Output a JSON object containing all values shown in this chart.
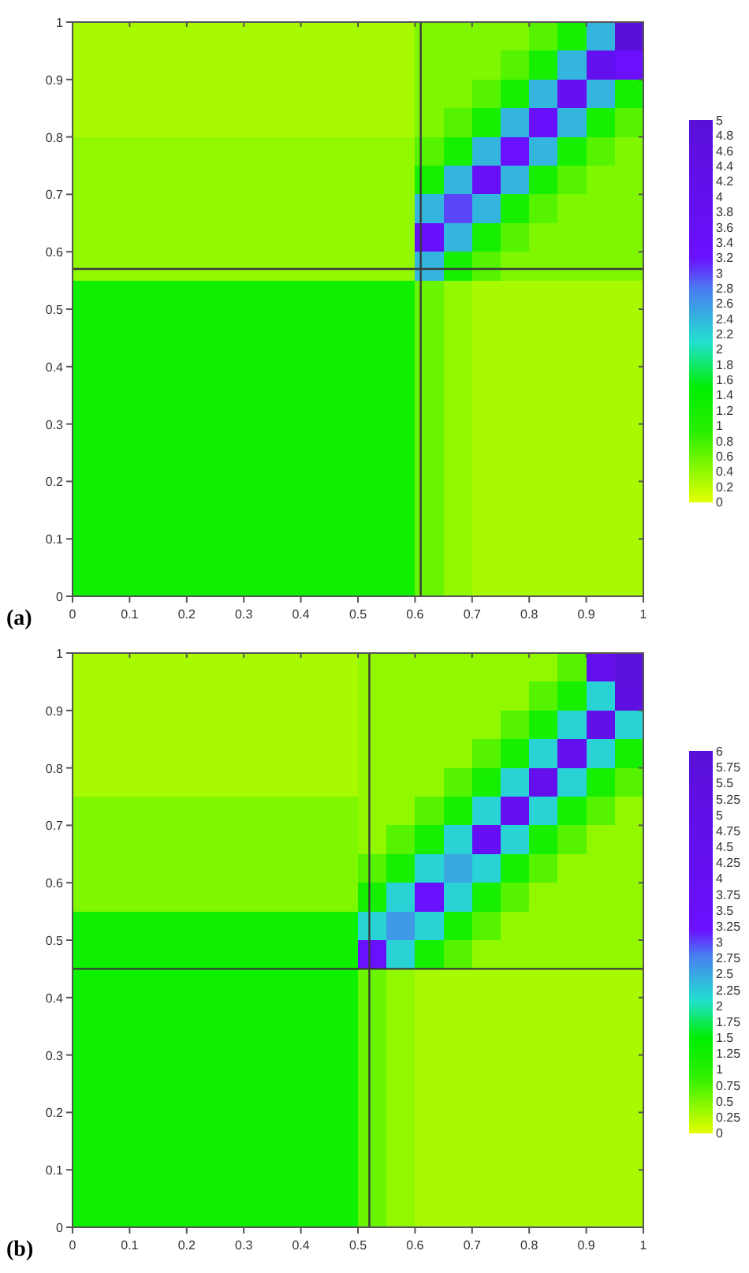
{
  "chart_data": [
    {
      "type": "heatmap",
      "x": [
        0.025,
        0.075,
        0.125,
        0.175,
        0.225,
        0.275,
        0.325,
        0.375,
        0.425,
        0.475,
        0.525,
        0.575,
        0.625,
        0.675,
        0.725,
        0.775,
        0.825,
        0.875,
        0.925,
        0.975
      ],
      "y": [
        0.975,
        0.925,
        0.875,
        0.825,
        0.775,
        0.725,
        0.675,
        0.625,
        0.575,
        0.525,
        0.475,
        0.425,
        0.375,
        0.325,
        0.275,
        0.225,
        0.175,
        0.125,
        0.075,
        0.025
      ],
      "xlim": [
        0,
        1
      ],
      "ylim": [
        0,
        1
      ],
      "xticks": [
        0,
        0.1,
        0.2,
        0.3,
        0.4,
        0.5,
        0.6,
        0.7,
        0.8,
        0.9,
        1
      ],
      "yticks": [
        0,
        0.1,
        0.2,
        0.3,
        0.4,
        0.5,
        0.6,
        0.7,
        0.8,
        0.9,
        1
      ],
      "clim": [
        0,
        5
      ],
      "cticks": [
        0,
        0.2,
        0.4,
        0.6,
        0.8,
        1,
        1.2,
        1.4,
        1.6,
        1.8,
        2,
        2.2,
        2.4,
        2.6,
        2.8,
        3,
        3.2,
        3.4,
        3.6,
        3.8,
        4,
        4.2,
        4.4,
        4.6,
        4.8,
        5
      ],
      "ref_lines": [
        {
          "axis": "x",
          "value": 0.61
        },
        {
          "axis": "y",
          "value": 0.57
        }
      ],
      "annotations": [
        "(a)"
      ],
      "cells": [
        [
          0.3,
          0.3,
          0.3,
          0.3,
          0.3,
          0.3,
          0.3,
          0.3,
          0.3,
          0.3,
          0.3,
          0.3,
          0.5,
          0.5,
          0.5,
          0.5,
          0.7,
          1.2,
          2.4,
          5
        ],
        [
          0.3,
          0.3,
          0.3,
          0.3,
          0.3,
          0.3,
          0.3,
          0.3,
          0.3,
          0.3,
          0.3,
          0.3,
          0.5,
          0.5,
          0.5,
          0.7,
          1.2,
          2.4,
          4,
          3.2
        ],
        [
          0.3,
          0.3,
          0.3,
          0.3,
          0.3,
          0.3,
          0.3,
          0.3,
          0.3,
          0.3,
          0.3,
          0.3,
          0.5,
          0.5,
          0.7,
          1.2,
          2.4,
          3.8,
          2.4,
          1.2
        ],
        [
          0.3,
          0.3,
          0.3,
          0.3,
          0.3,
          0.3,
          0.3,
          0.3,
          0.3,
          0.3,
          0.3,
          0.3,
          0.5,
          0.7,
          1.2,
          2.4,
          3.4,
          2.4,
          1.2,
          0.7
        ],
        [
          0.4,
          0.4,
          0.4,
          0.4,
          0.4,
          0.4,
          0.4,
          0.4,
          0.4,
          0.4,
          0.4,
          0.4,
          0.7,
          1.2,
          2.4,
          3.2,
          2.4,
          1.2,
          0.7,
          0.5
        ],
        [
          0.4,
          0.4,
          0.4,
          0.4,
          0.4,
          0.4,
          0.4,
          0.4,
          0.4,
          0.4,
          0.4,
          0.4,
          1.2,
          2.4,
          3.6,
          2.4,
          1.2,
          0.7,
          0.5,
          0.5
        ],
        [
          0.4,
          0.4,
          0.4,
          0.4,
          0.4,
          0.4,
          0.4,
          0.4,
          0.4,
          0.4,
          0.4,
          0.4,
          2.4,
          3,
          2.4,
          1.2,
          0.7,
          0.5,
          0.5,
          0.5
        ],
        [
          0.4,
          0.4,
          0.4,
          0.4,
          0.4,
          0.4,
          0.4,
          0.4,
          0.4,
          0.4,
          0.4,
          0.4,
          3.4,
          2.4,
          1.2,
          0.7,
          0.5,
          0.5,
          0.5,
          0.5
        ],
        [
          0.4,
          0.4,
          0.4,
          0.4,
          0.4,
          0.4,
          0.4,
          0.4,
          0.4,
          0.4,
          0.4,
          0.4,
          2.4,
          1.2,
          0.7,
          0.5,
          0.5,
          0.5,
          0.5,
          0.5
        ],
        [
          1.3,
          1.3,
          1.3,
          1.3,
          1.3,
          1.3,
          1.3,
          1.3,
          1.3,
          1.3,
          1.3,
          1.3,
          0.6,
          0.4,
          0.3,
          0.3,
          0.3,
          0.3,
          0.3,
          0.3
        ],
        [
          1.3,
          1.3,
          1.3,
          1.3,
          1.3,
          1.3,
          1.3,
          1.3,
          1.3,
          1.3,
          1.3,
          1.3,
          0.6,
          0.4,
          0.3,
          0.3,
          0.3,
          0.3,
          0.3,
          0.3
        ],
        [
          1.3,
          1.3,
          1.3,
          1.3,
          1.3,
          1.3,
          1.3,
          1.3,
          1.3,
          1.3,
          1.3,
          1.3,
          0.6,
          0.4,
          0.3,
          0.3,
          0.3,
          0.3,
          0.3,
          0.3
        ],
        [
          1.3,
          1.3,
          1.3,
          1.3,
          1.3,
          1.3,
          1.3,
          1.3,
          1.3,
          1.3,
          1.3,
          1.3,
          0.6,
          0.4,
          0.3,
          0.3,
          0.3,
          0.3,
          0.3,
          0.3
        ],
        [
          1.3,
          1.3,
          1.3,
          1.3,
          1.3,
          1.3,
          1.3,
          1.3,
          1.3,
          1.3,
          1.3,
          1.3,
          0.6,
          0.4,
          0.3,
          0.3,
          0.3,
          0.3,
          0.3,
          0.3
        ],
        [
          1.3,
          1.3,
          1.3,
          1.3,
          1.3,
          1.3,
          1.3,
          1.3,
          1.3,
          1.3,
          1.3,
          1.3,
          0.6,
          0.4,
          0.3,
          0.3,
          0.3,
          0.3,
          0.3,
          0.3
        ],
        [
          1.3,
          1.3,
          1.3,
          1.3,
          1.3,
          1.3,
          1.3,
          1.3,
          1.3,
          1.3,
          1.3,
          1.3,
          0.6,
          0.4,
          0.3,
          0.3,
          0.3,
          0.3,
          0.3,
          0.3
        ],
        [
          1.3,
          1.3,
          1.3,
          1.3,
          1.3,
          1.3,
          1.3,
          1.3,
          1.3,
          1.3,
          1.3,
          1.3,
          0.6,
          0.4,
          0.3,
          0.3,
          0.3,
          0.3,
          0.3,
          0.3
        ],
        [
          1.3,
          1.3,
          1.3,
          1.3,
          1.3,
          1.3,
          1.3,
          1.3,
          1.3,
          1.3,
          1.3,
          1.3,
          0.6,
          0.4,
          0.3,
          0.3,
          0.3,
          0.3,
          0.3,
          0.3
        ],
        [
          1.3,
          1.3,
          1.3,
          1.3,
          1.3,
          1.3,
          1.3,
          1.3,
          1.3,
          1.3,
          1.3,
          1.3,
          0.6,
          0.4,
          0.3,
          0.3,
          0.3,
          0.3,
          0.3,
          0.3
        ],
        [
          1.3,
          1.3,
          1.3,
          1.3,
          1.3,
          1.3,
          1.3,
          1.3,
          1.3,
          1.3,
          1.3,
          1.3,
          0.6,
          0.4,
          0.3,
          0.3,
          0.3,
          0.3,
          0.3,
          0.3
        ]
      ]
    },
    {
      "type": "heatmap",
      "x": [
        0.025,
        0.075,
        0.125,
        0.175,
        0.225,
        0.275,
        0.325,
        0.375,
        0.425,
        0.475,
        0.525,
        0.575,
        0.625,
        0.675,
        0.725,
        0.775,
        0.825,
        0.875,
        0.925,
        0.975
      ],
      "y": [
        0.975,
        0.925,
        0.875,
        0.825,
        0.775,
        0.725,
        0.675,
        0.625,
        0.575,
        0.525,
        0.475,
        0.425,
        0.375,
        0.325,
        0.275,
        0.225,
        0.175,
        0.125,
        0.075,
        0.025
      ],
      "xlim": [
        0,
        1
      ],
      "ylim": [
        0,
        1
      ],
      "xticks": [
        0,
        0.1,
        0.2,
        0.3,
        0.4,
        0.5,
        0.6,
        0.7,
        0.8,
        0.9,
        1
      ],
      "yticks": [
        0,
        0.1,
        0.2,
        0.3,
        0.4,
        0.5,
        0.6,
        0.7,
        0.8,
        0.9,
        1
      ],
      "clim": [
        0,
        6
      ],
      "cticks": [
        0,
        0.25,
        0.5,
        0.75,
        1,
        1.25,
        1.5,
        1.75,
        2,
        2.25,
        2.5,
        2.75,
        3,
        3.25,
        3.5,
        3.75,
        4,
        4.25,
        4.5,
        4.75,
        5,
        5.25,
        5.5,
        5.75,
        6
      ],
      "ref_lines": [
        {
          "axis": "x",
          "value": 0.52
        },
        {
          "axis": "y",
          "value": 0.45
        }
      ],
      "annotations": [
        "(b)"
      ],
      "cells": [
        [
          0.3,
          0.3,
          0.3,
          0.3,
          0.3,
          0.3,
          0.3,
          0.3,
          0.3,
          0.3,
          0.4,
          0.4,
          0.4,
          0.4,
          0.4,
          0.4,
          0.4,
          0.7,
          4.5,
          5.8
        ],
        [
          0.3,
          0.3,
          0.3,
          0.3,
          0.3,
          0.3,
          0.3,
          0.3,
          0.3,
          0.3,
          0.4,
          0.4,
          0.4,
          0.4,
          0.4,
          0.4,
          0.7,
          1.2,
          2.2,
          5.5
        ],
        [
          0.3,
          0.3,
          0.3,
          0.3,
          0.3,
          0.3,
          0.3,
          0.3,
          0.3,
          0.3,
          0.4,
          0.4,
          0.4,
          0.4,
          0.4,
          0.7,
          1.2,
          2.2,
          4.8,
          2.2
        ],
        [
          0.3,
          0.3,
          0.3,
          0.3,
          0.3,
          0.3,
          0.3,
          0.3,
          0.3,
          0.3,
          0.4,
          0.4,
          0.4,
          0.4,
          0.7,
          1.2,
          2.2,
          4.5,
          2.2,
          1.2
        ],
        [
          0.3,
          0.3,
          0.3,
          0.3,
          0.3,
          0.3,
          0.3,
          0.3,
          0.3,
          0.3,
          0.4,
          0.4,
          0.4,
          0.7,
          1.2,
          2.2,
          4.5,
          2.2,
          1.2,
          0.7
        ],
        [
          0.5,
          0.5,
          0.5,
          0.5,
          0.5,
          0.5,
          0.5,
          0.5,
          0.5,
          0.5,
          0.4,
          0.4,
          0.7,
          1.2,
          2.2,
          4.2,
          2.2,
          1.2,
          0.7,
          0.4
        ],
        [
          0.5,
          0.5,
          0.5,
          0.5,
          0.5,
          0.5,
          0.5,
          0.5,
          0.5,
          0.5,
          0.4,
          0.7,
          1.2,
          2.2,
          4,
          2.2,
          1.2,
          0.7,
          0.4,
          0.4
        ],
        [
          0.5,
          0.5,
          0.5,
          0.5,
          0.5,
          0.5,
          0.5,
          0.5,
          0.5,
          0.5,
          0.7,
          1.2,
          2.2,
          2.5,
          2.2,
          1.2,
          0.7,
          0.4,
          0.4,
          0.4
        ],
        [
          0.5,
          0.5,
          0.5,
          0.5,
          0.5,
          0.5,
          0.5,
          0.5,
          0.5,
          0.5,
          1.2,
          2.2,
          3.4,
          2.2,
          1.2,
          0.7,
          0.4,
          0.4,
          0.4,
          0.4
        ],
        [
          1.3,
          1.3,
          1.3,
          1.3,
          1.3,
          1.3,
          1.3,
          1.3,
          1.3,
          1.3,
          2.2,
          2.6,
          2.2,
          1.2,
          0.7,
          0.4,
          0.4,
          0.4,
          0.4,
          0.4
        ],
        [
          1.3,
          1.3,
          1.3,
          1.3,
          1.3,
          1.3,
          1.3,
          1.3,
          1.3,
          1.3,
          3.4,
          2.2,
          1.2,
          0.7,
          0.4,
          0.4,
          0.4,
          0.4,
          0.4,
          0.4
        ],
        [
          1.3,
          1.3,
          1.3,
          1.3,
          1.3,
          1.3,
          1.3,
          1.3,
          1.3,
          1.3,
          0.6,
          0.4,
          0.3,
          0.3,
          0.3,
          0.3,
          0.3,
          0.3,
          0.3,
          0.3
        ],
        [
          1.3,
          1.3,
          1.3,
          1.3,
          1.3,
          1.3,
          1.3,
          1.3,
          1.3,
          1.3,
          0.6,
          0.4,
          0.3,
          0.3,
          0.3,
          0.3,
          0.3,
          0.3,
          0.3,
          0.3
        ],
        [
          1.3,
          1.3,
          1.3,
          1.3,
          1.3,
          1.3,
          1.3,
          1.3,
          1.3,
          1.3,
          0.6,
          0.4,
          0.3,
          0.3,
          0.3,
          0.3,
          0.3,
          0.3,
          0.3,
          0.3
        ],
        [
          1.3,
          1.3,
          1.3,
          1.3,
          1.3,
          1.3,
          1.3,
          1.3,
          1.3,
          1.3,
          0.6,
          0.4,
          0.3,
          0.3,
          0.3,
          0.3,
          0.3,
          0.3,
          0.3,
          0.3
        ],
        [
          1.3,
          1.3,
          1.3,
          1.3,
          1.3,
          1.3,
          1.3,
          1.3,
          1.3,
          1.3,
          0.6,
          0.4,
          0.3,
          0.3,
          0.3,
          0.3,
          0.3,
          0.3,
          0.3,
          0.3
        ],
        [
          1.3,
          1.3,
          1.3,
          1.3,
          1.3,
          1.3,
          1.3,
          1.3,
          1.3,
          1.3,
          0.6,
          0.4,
          0.3,
          0.3,
          0.3,
          0.3,
          0.3,
          0.3,
          0.3,
          0.3
        ],
        [
          1.3,
          1.3,
          1.3,
          1.3,
          1.3,
          1.3,
          1.3,
          1.3,
          1.3,
          1.3,
          0.6,
          0.4,
          0.3,
          0.3,
          0.3,
          0.3,
          0.3,
          0.3,
          0.3,
          0.3
        ],
        [
          1.3,
          1.3,
          1.3,
          1.3,
          1.3,
          1.3,
          1.3,
          1.3,
          1.3,
          1.3,
          0.6,
          0.4,
          0.3,
          0.3,
          0.3,
          0.3,
          0.3,
          0.3,
          0.3,
          0.3
        ],
        [
          1.3,
          1.3,
          1.3,
          1.3,
          1.3,
          1.3,
          1.3,
          1.3,
          1.3,
          1.3,
          0.6,
          0.4,
          0.3,
          0.3,
          0.3,
          0.3,
          0.3,
          0.3,
          0.3,
          0.3
        ]
      ]
    }
  ]
}
